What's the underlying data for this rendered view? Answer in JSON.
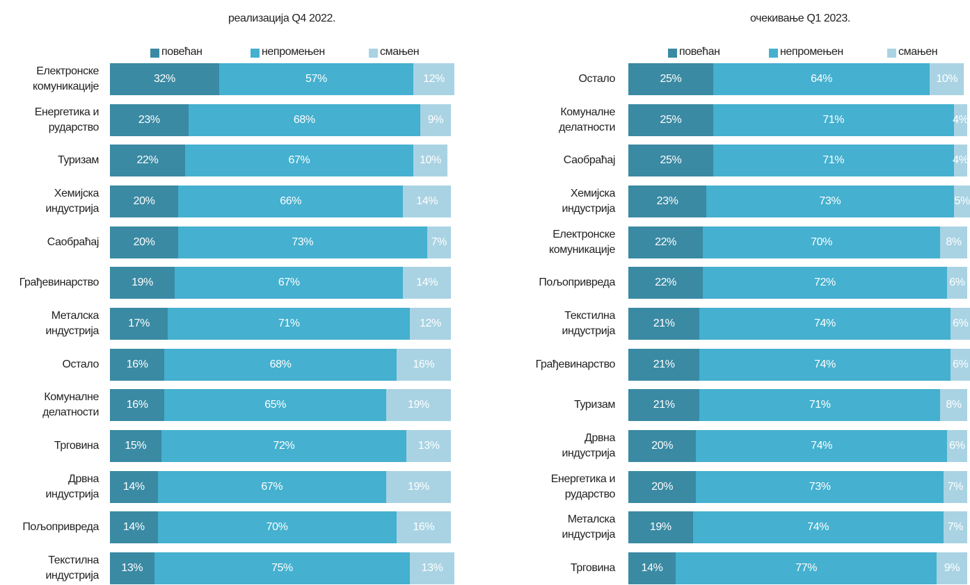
{
  "chart_data": [
    {
      "type": "stacked-bar-horizontal",
      "title": "реализација Q4 2022.",
      "categories": [
        "Електронске\nкомуникације",
        "Енергетика и\nрударство",
        "Туризам",
        "Хемијска\nиндустрија",
        "Саобраћај",
        "Грађевинарство",
        "Металска\nиндустрија",
        "Остало",
        "Комуналне\nделатности",
        "Трговина",
        "Дрвна\nиндустрија",
        "Пољопривреда",
        "Текстилна\nиндустрија"
      ],
      "series": [
        {
          "name": "повећан",
          "color": "#3a8aa3",
          "values": [
            32,
            23,
            22,
            20,
            20,
            19,
            17,
            16,
            16,
            15,
            14,
            14,
            13
          ],
          "value_labels": [
            "32%",
            "23%",
            "22%",
            "20%",
            "20%",
            "19%",
            "17%",
            "16%",
            "16%",
            "15%",
            "14%",
            "14%",
            "13%"
          ]
        },
        {
          "name": "непромењен",
          "color": "#45b0cf",
          "values": [
            57,
            68,
            67,
            66,
            73,
            67,
            71,
            68,
            65,
            72,
            67,
            70,
            75
          ],
          "value_labels": [
            "57%",
            "68%",
            "67%",
            "66%",
            "73%",
            "67%",
            "71%",
            "68%",
            "65%",
            "72%",
            "67%",
            "70%",
            "75%"
          ]
        },
        {
          "name": "смањен",
          "color": "#a9d3e3",
          "values": [
            12,
            9,
            10,
            14,
            7,
            14,
            12,
            16,
            19,
            13,
            19,
            16,
            13
          ],
          "value_labels": [
            "12%",
            "9%",
            "10%",
            "14%",
            "7%",
            "14%",
            "12%",
            "16%",
            "19%",
            "13%",
            "19%",
            "16%",
            "13%"
          ]
        }
      ]
    },
    {
      "type": "stacked-bar-horizontal",
      "title": "очекивање Q1 2023.",
      "categories": [
        "Остало",
        "Комуналне\nделатности",
        "Саобраћај",
        "Хемијска\nиндустрија",
        "Електронске\nкомуникације",
        "Пољопривреда",
        "Текстилна\nиндустрија",
        "Грађевинарство",
        "Туризам",
        "Дрвна\nиндустрија",
        "Енергетика и\nрударство",
        "Металска\nиндустрија",
        "Трговина"
      ],
      "series": [
        {
          "name": "повећан",
          "color": "#3a8aa3",
          "values": [
            25,
            25,
            25,
            23,
            22,
            22,
            21,
            21,
            21,
            20,
            20,
            19,
            14
          ],
          "value_labels": [
            "25%",
            "25%",
            "25%",
            "23%",
            "22%",
            "22%",
            "21%",
            "21%",
            "21%",
            "20%",
            "20%",
            "19%",
            "14%"
          ]
        },
        {
          "name": "непромењен",
          "color": "#45b0cf",
          "values": [
            64,
            71,
            71,
            73,
            70,
            72,
            74,
            74,
            71,
            74,
            73,
            74,
            77
          ],
          "value_labels": [
            "64%",
            "71%",
            "71%",
            "73%",
            "70%",
            "72%",
            "74%",
            "74%",
            "71%",
            "74%",
            "73%",
            "74%",
            "77%"
          ]
        },
        {
          "name": "смањен",
          "color": "#a9d3e3",
          "values": [
            10,
            4,
            4,
            5,
            8,
            6,
            6,
            6,
            8,
            6,
            7,
            7,
            9
          ],
          "value_labels": [
            "10%",
            "4%",
            "4%",
            "5%",
            "8%",
            "6%",
            "6%",
            "6%",
            "8%",
            "6%",
            "7%",
            "7%",
            "9%"
          ]
        }
      ]
    }
  ]
}
